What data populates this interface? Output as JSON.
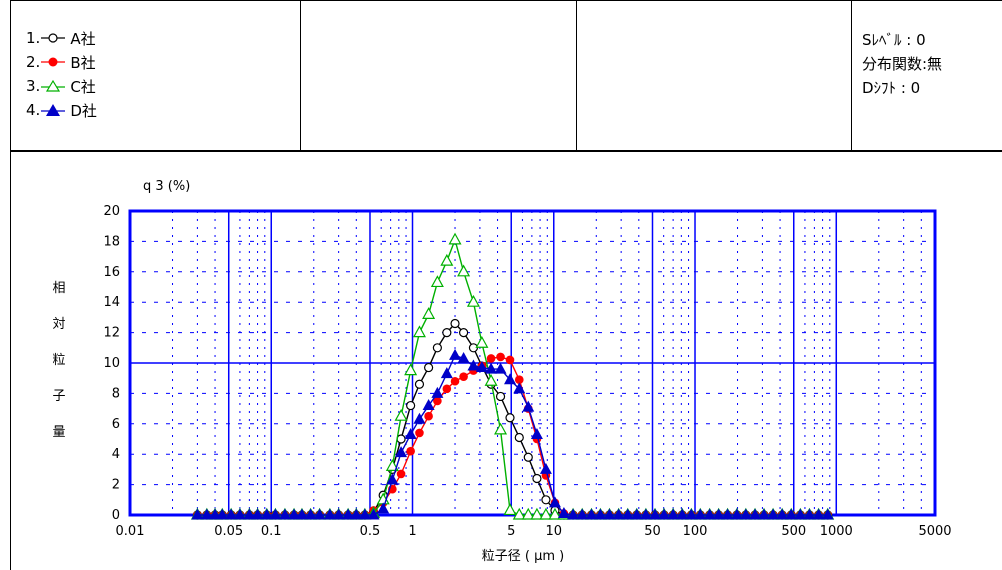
{
  "legend": [
    {
      "prefix": "1.",
      "label": "A社",
      "marker": "open-circle-icon",
      "color": "#000000"
    },
    {
      "prefix": "2.",
      "label": "B社",
      "marker": "filled-circle-icon",
      "color": "#ff0000"
    },
    {
      "prefix": "3.",
      "label": "C社",
      "marker": "open-triangle-icon",
      "color": "#00b000"
    },
    {
      "prefix": "4.",
      "label": "D社",
      "marker": "filled-triangle-icon",
      "color": "#0000c8"
    }
  ],
  "settings": {
    "s_level": "Sﾚﾍﾞﾙ : 0",
    "dist_func": "分布関数:無",
    "d_shift": "Dｼﾌﾄ   : 0"
  },
  "chart_data": {
    "type": "line",
    "ylabel_unit": "q 3 (%)",
    "ylabel_vertical": [
      "相",
      "対",
      "粒",
      "子",
      "量"
    ],
    "xlabel": "粒子径 ( μm )",
    "x_scale": "log",
    "xlim": [
      0.01,
      5000
    ],
    "ylim": [
      0,
      20
    ],
    "x_ticks": [
      {
        "v": 0.01,
        "t": "0.01"
      },
      {
        "v": 0.05,
        "t": "0.05"
      },
      {
        "v": 0.1,
        "t": "0.1"
      },
      {
        "v": 0.5,
        "t": "0.5"
      },
      {
        "v": 1,
        "t": "1"
      },
      {
        "v": 5,
        "t": "5"
      },
      {
        "v": 10,
        "t": "10"
      },
      {
        "v": 50,
        "t": "50"
      },
      {
        "v": 100,
        "t": "100"
      },
      {
        "v": 500,
        "t": "500"
      },
      {
        "v": 1000,
        "t": "1000"
      },
      {
        "v": 5000,
        "t": "5000"
      }
    ],
    "y_ticks": [
      0,
      2,
      4,
      6,
      8,
      10,
      12,
      14,
      16,
      18,
      20
    ],
    "grid": true,
    "bin_sizes": [
      0.03,
      0.035,
      0.04,
      0.045,
      0.052,
      0.06,
      0.07,
      0.08,
      0.093,
      0.107,
      0.125,
      0.145,
      0.165,
      0.19,
      0.22,
      0.26,
      0.3,
      0.35,
      0.4,
      0.46,
      0.53,
      0.62,
      0.72,
      0.83,
      0.97,
      1.12,
      1.3,
      1.5,
      1.75,
      2.0,
      2.3,
      2.7,
      3.1,
      3.6,
      4.2,
      4.9,
      5.7,
      6.6,
      7.6,
      8.8,
      10.2,
      11.8,
      13.7,
      15.9,
      18.5,
      21.4,
      24.8,
      28.8,
      33.4,
      38.7,
      44.9,
      52.1,
      60.4,
      70.0,
      81.2,
      94.2,
      109,
      127,
      147,
      170,
      198,
      229,
      266,
      308,
      357,
      414,
      480,
      557,
      646,
      750,
      870
    ],
    "series": [
      {
        "name": "A社",
        "color": "#000000",
        "marker": "open-circle",
        "x": [
          0.53,
          0.62,
          0.72,
          0.83,
          0.97,
          1.12,
          1.3,
          1.5,
          1.75,
          2.0,
          2.3,
          2.7,
          3.1,
          3.6,
          4.2,
          4.9,
          5.7,
          6.6,
          7.6,
          8.8,
          10.2,
          11.8
        ],
        "y": [
          0.2,
          1.3,
          3.0,
          5.0,
          7.2,
          8.6,
          9.7,
          11.0,
          12.0,
          12.6,
          12.0,
          11.0,
          9.8,
          8.6,
          7.8,
          6.4,
          5.1,
          3.8,
          2.4,
          1.0,
          0.3,
          0.0
        ]
      },
      {
        "name": "B社",
        "color": "#ff0000",
        "marker": "filled-circle",
        "x": [
          0.53,
          0.62,
          0.72,
          0.83,
          0.97,
          1.12,
          1.3,
          1.5,
          1.75,
          2.0,
          2.3,
          2.7,
          3.1,
          3.6,
          4.2,
          4.9,
          5.7,
          6.6,
          7.6,
          8.8,
          10.2,
          11.8,
          13.7
        ],
        "y": [
          0.3,
          0.8,
          1.7,
          2.7,
          4.2,
          5.4,
          6.5,
          7.5,
          8.3,
          8.8,
          9.1,
          9.5,
          9.8,
          10.3,
          10.4,
          10.2,
          8.9,
          7.0,
          5.0,
          2.6,
          0.8,
          0.1,
          0.0
        ]
      },
      {
        "name": "C社",
        "color": "#00b000",
        "marker": "open-triangle",
        "x": [
          0.53,
          0.62,
          0.72,
          0.83,
          0.97,
          1.12,
          1.3,
          1.5,
          1.75,
          2.0,
          2.3,
          2.7,
          3.1,
          3.6,
          4.2,
          4.9,
          5.7,
          6.6,
          7.6,
          8.8
        ],
        "y": [
          0.1,
          1.0,
          3.2,
          6.5,
          9.5,
          12.0,
          13.2,
          15.3,
          16.7,
          18.1,
          16.0,
          14.0,
          11.3,
          8.8,
          5.6,
          0.3,
          0.0,
          0.0,
          0.0,
          0.0
        ]
      },
      {
        "name": "D社",
        "color": "#0000c8",
        "marker": "filled-triangle",
        "x": [
          0.53,
          0.62,
          0.72,
          0.83,
          0.97,
          1.12,
          1.3,
          1.5,
          1.75,
          2.0,
          2.3,
          2.7,
          3.1,
          3.6,
          4.2,
          4.9,
          5.7,
          6.6,
          7.6,
          8.8,
          10.2,
          11.8,
          13.7
        ],
        "y": [
          0.0,
          0.4,
          2.3,
          4.1,
          5.3,
          6.3,
          7.2,
          8.0,
          9.3,
          10.5,
          10.3,
          9.8,
          9.7,
          9.6,
          9.6,
          8.9,
          8.3,
          7.1,
          5.3,
          3.0,
          0.8,
          0.1,
          0.0
        ]
      }
    ]
  }
}
